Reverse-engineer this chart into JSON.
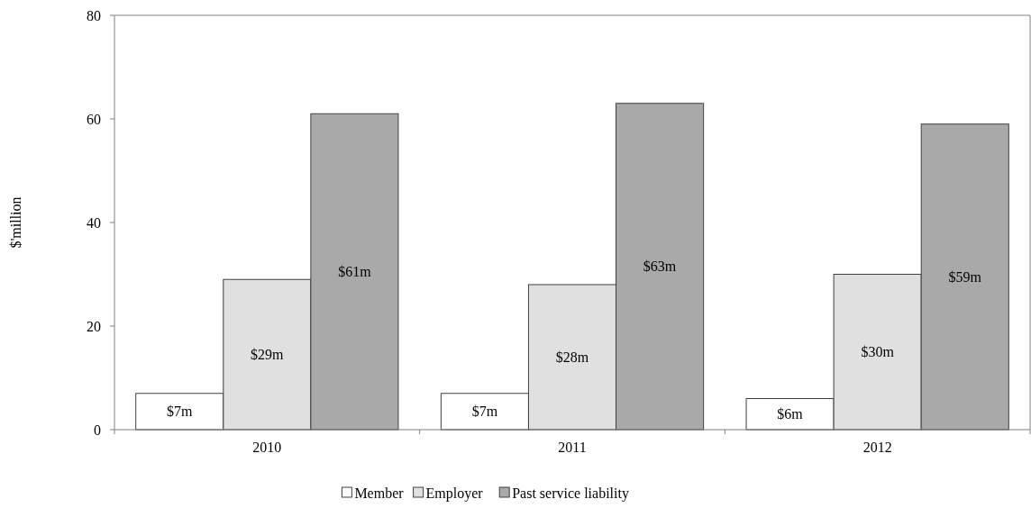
{
  "chart_data": {
    "type": "bar",
    "ylabel": "$'million",
    "categories": [
      "2010",
      "2011",
      "2012"
    ],
    "series": [
      {
        "name": "Member",
        "color": "#ffffff",
        "values": [
          7,
          7,
          6
        ],
        "value_labels": [
          "$7m",
          "$7m",
          "$6m"
        ]
      },
      {
        "name": "Employer",
        "color": "#e0e0e0",
        "values": [
          29,
          28,
          30
        ],
        "value_labels": [
          "$29m",
          "$28m",
          "$30m"
        ]
      },
      {
        "name": "Past service liability",
        "color": "#a9a9a9",
        "values": [
          61,
          63,
          59
        ],
        "value_labels": [
          "$61m",
          "$63m",
          "$59m"
        ]
      }
    ],
    "ylim": [
      0,
      80
    ],
    "yticks": [
      0,
      20,
      40,
      60,
      80
    ],
    "grid": false,
    "legend": "bottom"
  }
}
